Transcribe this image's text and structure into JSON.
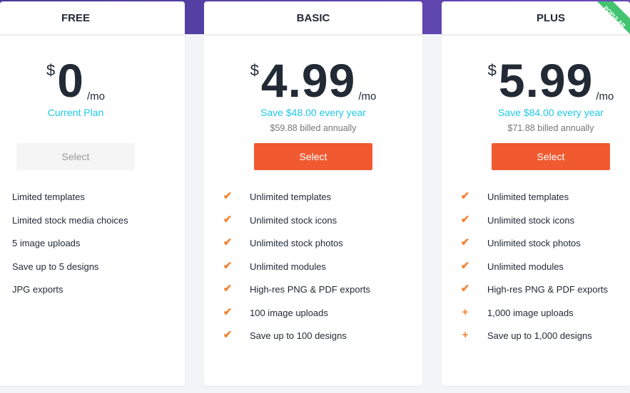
{
  "colors": {
    "accent": "#f15a31",
    "save_text": "#22c7e6",
    "ribbon": "#43c470",
    "check": "#f58232"
  },
  "plans": [
    {
      "name": "FREE",
      "currency": "$",
      "amount": "0",
      "period": "/mo",
      "note": "Current Plan",
      "billed": "",
      "button": "Select",
      "button_enabled": false,
      "features": [
        {
          "icon": "",
          "text": "Limited templates"
        },
        {
          "icon": "",
          "text": "Limited stock media choices"
        },
        {
          "icon": "",
          "text": "5 image uploads"
        },
        {
          "icon": "",
          "text": "Save up to 5 designs"
        },
        {
          "icon": "",
          "text": "JPG exports"
        }
      ]
    },
    {
      "name": "BASIC",
      "currency": "$",
      "amount": "4.99",
      "period": "/mo",
      "note": "Save $48.00 every year",
      "billed": "$59.88 billed annually",
      "button": "Select",
      "button_enabled": true,
      "features": [
        {
          "icon": "check-icon",
          "text": "Unlimited templates"
        },
        {
          "icon": "check-icon",
          "text": "Unlimited stock icons"
        },
        {
          "icon": "check-icon",
          "text": "Unlimited stock photos"
        },
        {
          "icon": "check-icon",
          "text": "Unlimited modules"
        },
        {
          "icon": "check-icon",
          "text": "High-res PNG & PDF exports"
        },
        {
          "icon": "check-icon",
          "text": "100 image uploads"
        },
        {
          "icon": "check-icon",
          "text": "Save up to 100 designs"
        }
      ]
    },
    {
      "name": "PLUS",
      "currency": "$",
      "amount": "5.99",
      "period": "/mo",
      "note": "Save $84.00 every year",
      "billed": "$71.88 billed annually",
      "button": "Select",
      "button_enabled": true,
      "ribbon": "POPULAR",
      "features": [
        {
          "icon": "check-icon",
          "text": "Unlimited templates"
        },
        {
          "icon": "check-icon",
          "text": "Unlimited stock icons"
        },
        {
          "icon": "check-icon",
          "text": "Unlimited stock photos"
        },
        {
          "icon": "check-icon",
          "text": "Unlimited modules"
        },
        {
          "icon": "check-icon",
          "text": "High-res PNG & PDF exports"
        },
        {
          "icon": "plus-icon",
          "text": "1,000 image uploads"
        },
        {
          "icon": "plus-icon",
          "text": "Save up to 1,000 designs"
        }
      ]
    }
  ]
}
